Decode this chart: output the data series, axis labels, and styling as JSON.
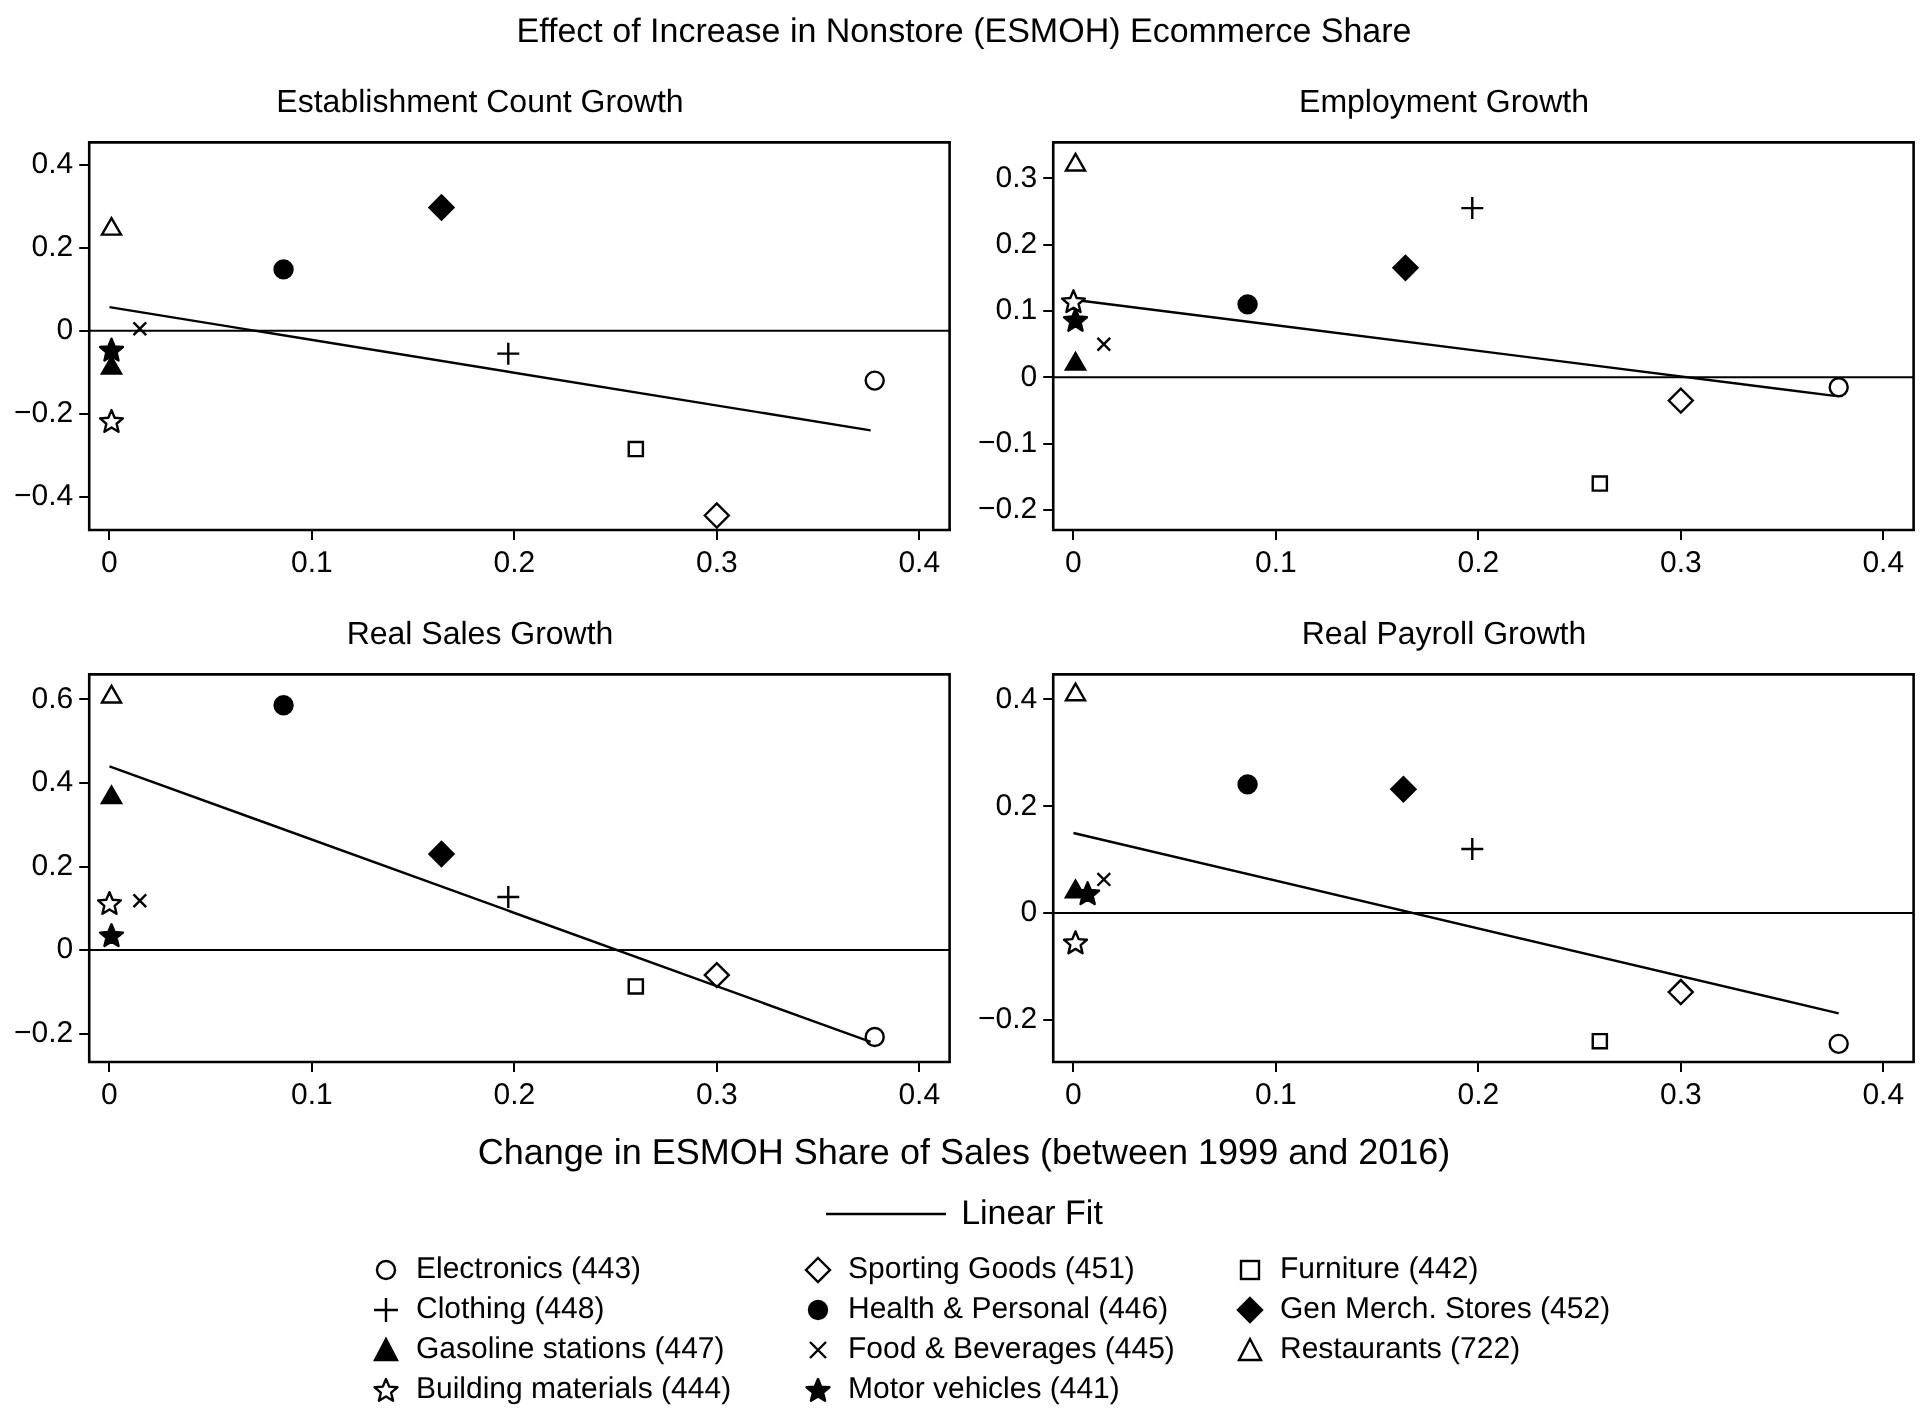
{
  "chart_data": [
    {
      "type": "scatter",
      "title": "Establishment Count Growth",
      "xlim": [
        -0.01,
        0.415
      ],
      "xticks": [
        0,
        0.1,
        0.2,
        0.3,
        0.4
      ],
      "ylim": [
        -0.48,
        0.454
      ],
      "yticks": [
        -0.4,
        -0.2,
        0,
        0.2,
        0.4
      ],
      "legend": "bottom",
      "ref_lines": [
        {
          "axis": "y",
          "value": 0,
          "color": "#000000"
        }
      ],
      "series": [
        {
          "name": "Linear Fit",
          "type": "line",
          "color": "#000000",
          "x": [
            0,
            0.376
          ],
          "values": [
            0.057,
            -0.24
          ]
        },
        {
          "name": "Electronics (443)",
          "marker": "circle-open",
          "color": "#000000",
          "x": [
            0.378
          ],
          "values": [
            -0.12
          ]
        },
        {
          "name": "Sporting Goods (451)",
          "marker": "diamond-open",
          "color": "#000000",
          "x": [
            0.3
          ],
          "values": [
            -0.445
          ]
        },
        {
          "name": "Furniture (442)",
          "marker": "square-open",
          "color": "#000000",
          "x": [
            0.26
          ],
          "values": [
            -0.285
          ]
        },
        {
          "name": "Clothing (448)",
          "marker": "cross",
          "color": "#000000",
          "x": [
            0.197
          ],
          "values": [
            -0.055
          ]
        },
        {
          "name": "Health & Personal (446)",
          "marker": "circle",
          "color": "#000000",
          "x": [
            0.086
          ],
          "values": [
            0.148
          ]
        },
        {
          "name": "Gen Merch. Stores (452)",
          "marker": "diamond",
          "color": "#000000",
          "x": [
            0.164
          ],
          "values": [
            0.297
          ]
        },
        {
          "name": "Gasoline stations (447)",
          "marker": "triangle",
          "color": "#000000",
          "x": [
            0.001
          ],
          "values": [
            -0.09
          ]
        },
        {
          "name": "Food & Beverages (445)",
          "marker": "x",
          "color": "#000000",
          "x": [
            0.015
          ],
          "values": [
            0.005
          ]
        },
        {
          "name": "Restaurants (722)",
          "marker": "triangle-open",
          "color": "#000000",
          "x": [
            0.001
          ],
          "values": [
            0.245
          ]
        },
        {
          "name": "Building materials (444)",
          "marker": "star-open",
          "color": "#000000",
          "x": [
            0.001
          ],
          "values": [
            -0.22
          ]
        },
        {
          "name": "Motor vehicles (441)",
          "marker": "star",
          "color": "#000000",
          "x": [
            0.001
          ],
          "values": [
            -0.048
          ]
        }
      ]
    },
    {
      "type": "scatter",
      "title": "Employment Growth",
      "xlim": [
        -0.01,
        0.415
      ],
      "xticks": [
        0,
        0.1,
        0.2,
        0.3,
        0.4
      ],
      "ylim": [
        -0.23,
        0.354
      ],
      "yticks": [
        -0.2,
        -0.1,
        0,
        0.1,
        0.2,
        0.3
      ],
      "ref_lines": [
        {
          "axis": "y",
          "value": 0,
          "color": "#000000"
        }
      ],
      "series": [
        {
          "type": "line",
          "color": "#000000",
          "x": [
            0,
            0.376
          ],
          "values": [
            0.117,
            -0.028
          ]
        },
        {
          "marker": "circle-open",
          "color": "#000000",
          "x": [
            0.378
          ],
          "values": [
            -0.015
          ]
        },
        {
          "marker": "diamond-open",
          "color": "#000000",
          "x": [
            0.3
          ],
          "values": [
            -0.035
          ]
        },
        {
          "marker": "square-open",
          "color": "#000000",
          "x": [
            0.26
          ],
          "values": [
            -0.16
          ]
        },
        {
          "marker": "cross",
          "color": "#000000",
          "x": [
            0.197
          ],
          "values": [
            0.255
          ]
        },
        {
          "marker": "circle",
          "color": "#000000",
          "x": [
            0.086
          ],
          "values": [
            0.11
          ]
        },
        {
          "marker": "diamond",
          "color": "#000000",
          "x": [
            0.164
          ],
          "values": [
            0.165
          ]
        },
        {
          "marker": "triangle",
          "color": "#000000",
          "x": [
            0.001
          ],
          "values": [
            0.02
          ]
        },
        {
          "marker": "x",
          "color": "#000000",
          "x": [
            0.015
          ],
          "values": [
            0.05
          ]
        },
        {
          "marker": "triangle-open",
          "color": "#000000",
          "x": [
            0.001
          ],
          "values": [
            0.32
          ]
        },
        {
          "marker": "star-open",
          "color": "#000000",
          "x": [
            0.0
          ],
          "values": [
            0.113
          ]
        },
        {
          "marker": "star",
          "color": "#000000",
          "x": [
            0.001
          ],
          "values": [
            0.085
          ]
        }
      ]
    },
    {
      "type": "scatter",
      "title": "Real Sales Growth",
      "xlim": [
        -0.01,
        0.415
      ],
      "xticks": [
        0,
        0.1,
        0.2,
        0.3,
        0.4
      ],
      "ylim": [
        -0.268,
        0.66
      ],
      "yticks": [
        -0.2,
        0,
        0.2,
        0.4,
        0.6
      ],
      "ref_lines": [
        {
          "axis": "y",
          "value": 0,
          "color": "#000000"
        }
      ],
      "series": [
        {
          "type": "line",
          "color": "#000000",
          "x": [
            0,
            0.376
          ],
          "values": [
            0.44,
            -0.22
          ]
        },
        {
          "marker": "circle-open",
          "color": "#000000",
          "x": [
            0.378
          ],
          "values": [
            -0.208
          ]
        },
        {
          "marker": "diamond-open",
          "color": "#000000",
          "x": [
            0.3
          ],
          "values": [
            -0.06
          ]
        },
        {
          "marker": "square-open",
          "color": "#000000",
          "x": [
            0.26
          ],
          "values": [
            -0.087
          ]
        },
        {
          "marker": "cross",
          "color": "#000000",
          "x": [
            0.197
          ],
          "values": [
            0.127
          ]
        },
        {
          "marker": "circle",
          "color": "#000000",
          "x": [
            0.086
          ],
          "values": [
            0.586
          ]
        },
        {
          "marker": "diamond",
          "color": "#000000",
          "x": [
            0.164
          ],
          "values": [
            0.23
          ]
        },
        {
          "marker": "triangle",
          "color": "#000000",
          "x": [
            0.001
          ],
          "values": [
            0.365
          ]
        },
        {
          "marker": "x",
          "color": "#000000",
          "x": [
            0.015
          ],
          "values": [
            0.118
          ]
        },
        {
          "marker": "triangle-open",
          "color": "#000000",
          "x": [
            0.001
          ],
          "values": [
            0.606
          ]
        },
        {
          "marker": "star-open",
          "color": "#000000",
          "x": [
            0.0
          ],
          "values": [
            0.11
          ]
        },
        {
          "marker": "star",
          "color": "#000000",
          "x": [
            0.001
          ],
          "values": [
            0.033
          ]
        }
      ]
    },
    {
      "type": "scatter",
      "title": "Real Payroll Growth",
      "xlim": [
        -0.01,
        0.415
      ],
      "xticks": [
        0,
        0.1,
        0.2,
        0.3,
        0.4
      ],
      "ylim": [
        -0.279,
        0.447
      ],
      "yticks": [
        -0.2,
        0,
        0.2,
        0.4
      ],
      "ref_lines": [
        {
          "axis": "y",
          "value": 0,
          "color": "#000000"
        }
      ],
      "series": [
        {
          "type": "line",
          "color": "#000000",
          "x": [
            0,
            0.378
          ],
          "values": [
            0.15,
            -0.188
          ]
        },
        {
          "marker": "circle-open",
          "color": "#000000",
          "x": [
            0.378
          ],
          "values": [
            -0.245
          ]
        },
        {
          "marker": "diamond-open",
          "color": "#000000",
          "x": [
            0.3
          ],
          "values": [
            -0.148
          ]
        },
        {
          "marker": "square-open",
          "color": "#000000",
          "x": [
            0.26
          ],
          "values": [
            -0.24
          ]
        },
        {
          "marker": "cross",
          "color": "#000000",
          "x": [
            0.197
          ],
          "values": [
            0.12
          ]
        },
        {
          "marker": "circle",
          "color": "#000000",
          "x": [
            0.086
          ],
          "values": [
            0.241
          ]
        },
        {
          "marker": "diamond",
          "color": "#000000",
          "x": [
            0.163
          ],
          "values": [
            0.232
          ]
        },
        {
          "marker": "triangle",
          "color": "#000000",
          "x": [
            0.001
          ],
          "values": [
            0.04
          ]
        },
        {
          "marker": "x",
          "color": "#000000",
          "x": [
            0.015
          ],
          "values": [
            0.063
          ]
        },
        {
          "marker": "triangle-open",
          "color": "#000000",
          "x": [
            0.001
          ],
          "values": [
            0.409
          ]
        },
        {
          "marker": "star-open",
          "color": "#000000",
          "x": [
            0.001
          ],
          "values": [
            -0.057
          ]
        },
        {
          "marker": "star",
          "color": "#000000",
          "x": [
            0.007
          ],
          "values": [
            0.035
          ]
        }
      ]
    },
    {
      "type": "other",
      "title": "Effect of Increase in Nonstore (ESMOH) Ecommerce Share",
      "xlabel": "Change in ESMOH Share of Sales (between 1999 and 2016)"
    }
  ]
}
